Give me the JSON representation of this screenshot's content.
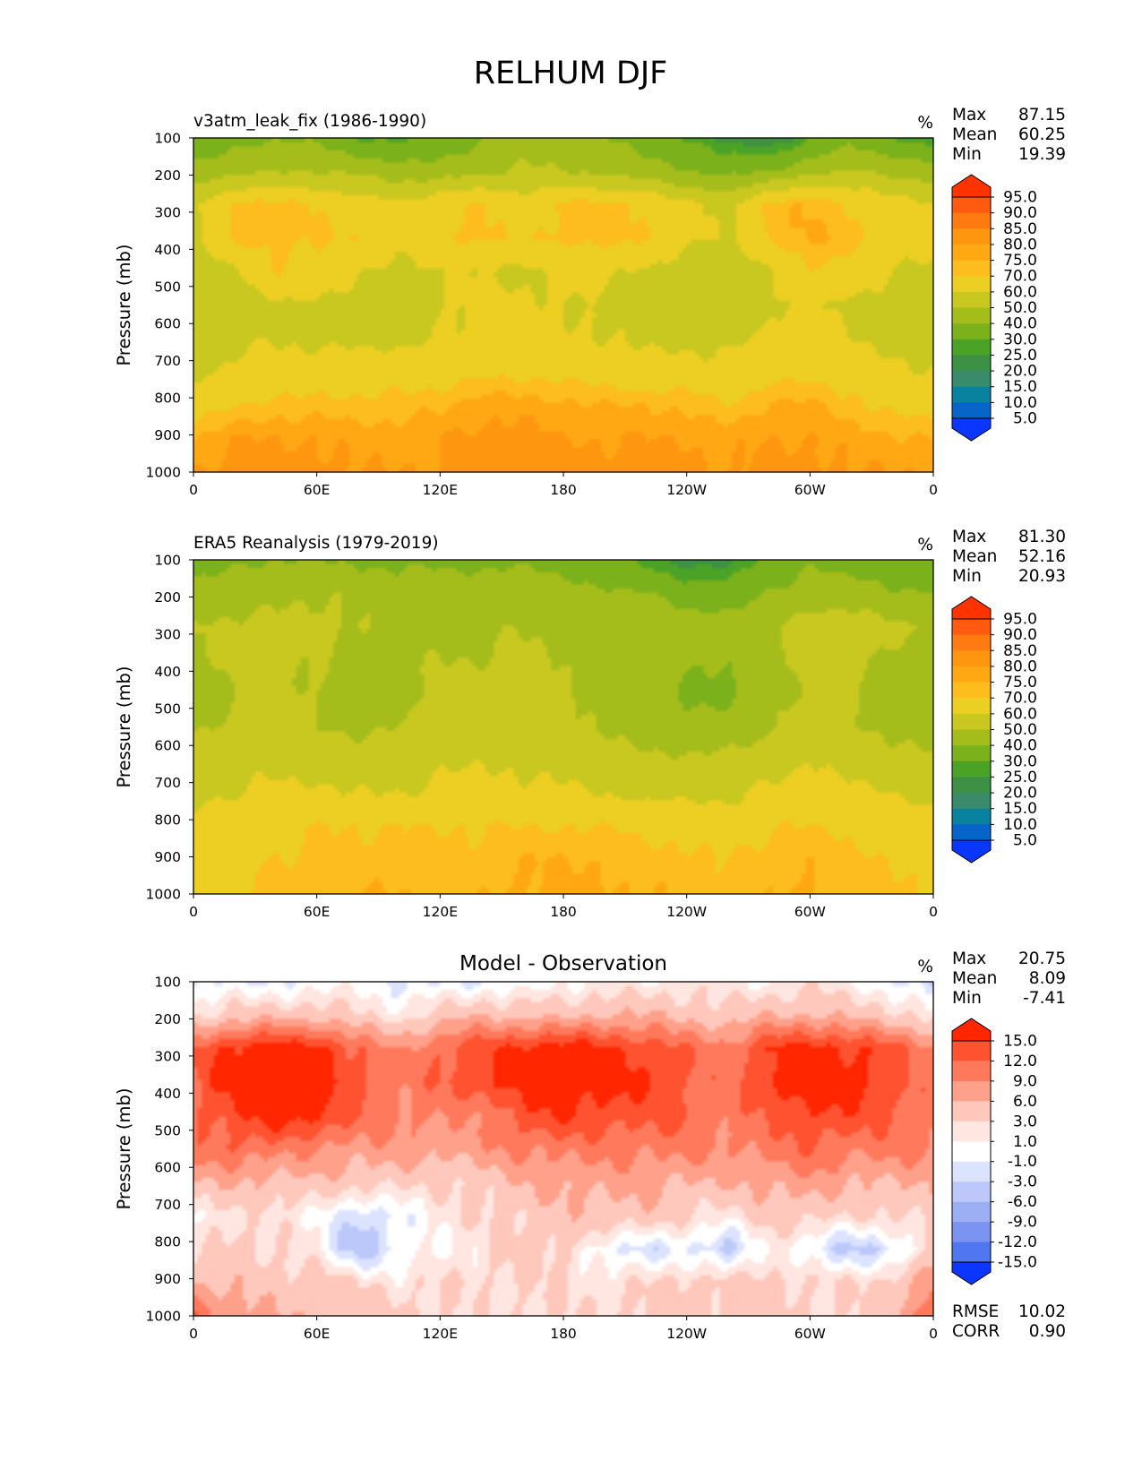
{
  "figure": {
    "title": "RELHUM DJF"
  },
  "chart_data": [
    {
      "type": "heatmap",
      "title": "v3atm_leak_fix (1986-1990)",
      "units": "%",
      "ylabel": "Pressure (mb)",
      "yticks": [
        "100",
        "200",
        "300",
        "400",
        "500",
        "600",
        "700",
        "800",
        "900",
        "1000"
      ],
      "xticks": [
        "0",
        "60E",
        "120E",
        "180",
        "120W",
        "60W",
        "0"
      ],
      "ylim": [
        1000,
        100
      ],
      "xlim": [
        0,
        360
      ],
      "stats": {
        "max_label": "Max",
        "max": "87.15",
        "mean_label": "Mean",
        "mean": "60.25",
        "min_label": "Min",
        "min": "19.39"
      },
      "levels": [
        "95.0",
        "90.0",
        "85.0",
        "80.0",
        "75.0",
        "70.0",
        "60.0",
        "50.0",
        "40.0",
        "30.0",
        "25.0",
        "20.0",
        "15.0",
        "10.0",
        "5.0"
      ],
      "colors": [
        "#ff3300",
        "#ff5a10",
        "#ff7a10",
        "#ff9610",
        "#ffa814",
        "#fdbd1e",
        "#eccf22",
        "#c9c820",
        "#a5bd1a",
        "#7bb11a",
        "#4aa327",
        "#3e9045",
        "#3a8a6c",
        "#08829e",
        "#0764c8",
        "#0a37ff"
      ],
      "field": [
        [
          30,
          35,
          40,
          38,
          30,
          28,
          30,
          40,
          45,
          42,
          40,
          35,
          30,
          22,
          20,
          28,
          38,
          30,
          25
        ],
        [
          45,
          48,
          50,
          50,
          48,
          45,
          45,
          48,
          52,
          50,
          48,
          44,
          40,
          38,
          40,
          48,
          50,
          48,
          45
        ],
        [
          58,
          72,
          72,
          70,
          65,
          62,
          68,
          70,
          65,
          72,
          72,
          70,
          62,
          58,
          72,
          75,
          70,
          65,
          62
        ],
        [
          58,
          72,
          72,
          70,
          70,
          62,
          70,
          72,
          68,
          72,
          72,
          70,
          62,
          58,
          72,
          76,
          72,
          65,
          62
        ],
        [
          55,
          58,
          70,
          68,
          60,
          58,
          60,
          60,
          58,
          62,
          62,
          58,
          56,
          52,
          58,
          70,
          66,
          60,
          58
        ],
        [
          55,
          56,
          58,
          58,
          58,
          56,
          60,
          62,
          62,
          60,
          58,
          56,
          56,
          56,
          58,
          62,
          58,
          56,
          56
        ],
        [
          55,
          58,
          60,
          58,
          58,
          58,
          60,
          62,
          62,
          62,
          60,
          58,
          58,
          58,
          62,
          65,
          60,
          58,
          56
        ],
        [
          58,
          62,
          63,
          65,
          65,
          66,
          66,
          68,
          68,
          68,
          66,
          64,
          64,
          62,
          66,
          68,
          65,
          62,
          60
        ],
        [
          65,
          70,
          72,
          72,
          72,
          72,
          74,
          78,
          78,
          76,
          75,
          75,
          74,
          70,
          76,
          76,
          72,
          68,
          66
        ],
        [
          75,
          80,
          80,
          80,
          78,
          78,
          80,
          82,
          82,
          80,
          80,
          80,
          80,
          78,
          80,
          80,
          78,
          76,
          75
        ],
        [
          80,
          82,
          82,
          82,
          80,
          80,
          80,
          82,
          82,
          82,
          82,
          82,
          82,
          80,
          82,
          82,
          80,
          80,
          80
        ]
      ]
    },
    {
      "type": "heatmap",
      "title": "ERA5 Reanalysis (1979-2019)",
      "units": "%",
      "ylabel": "Pressure (mb)",
      "yticks": [
        "100",
        "200",
        "300",
        "400",
        "500",
        "600",
        "700",
        "800",
        "900",
        "1000"
      ],
      "xticks": [
        "0",
        "60E",
        "120E",
        "180",
        "120W",
        "60W",
        "0"
      ],
      "ylim": [
        1000,
        100
      ],
      "xlim": [
        0,
        360
      ],
      "stats": {
        "max_label": "Max",
        "max": "81.30",
        "mean_label": "Mean",
        "mean": "52.16",
        "min_label": "Min",
        "min": "20.93"
      },
      "levels": [
        "95.0",
        "90.0",
        "85.0",
        "80.0",
        "75.0",
        "70.0",
        "60.0",
        "50.0",
        "40.0",
        "30.0",
        "25.0",
        "20.0",
        "15.0",
        "10.0",
        "5.0"
      ],
      "colors": [
        "#ff3300",
        "#ff5a10",
        "#ff7a10",
        "#ff9610",
        "#ffa814",
        "#fdbd1e",
        "#eccf22",
        "#c9c820",
        "#a5bd1a",
        "#7bb11a",
        "#4aa327",
        "#3e9045",
        "#3a8a6c",
        "#08829e",
        "#0764c8",
        "#0a37ff"
      ],
      "field": [
        [
          35,
          38,
          40,
          40,
          38,
          38,
          38,
          38,
          38,
          35,
          32,
          28,
          22,
          22,
          35,
          38,
          35,
          32,
          32
        ],
        [
          45,
          45,
          48,
          50,
          48,
          45,
          45,
          45,
          48,
          45,
          42,
          40,
          35,
          35,
          40,
          45,
          45,
          42,
          40
        ],
        [
          50,
          52,
          52,
          52,
          50,
          48,
          48,
          48,
          50,
          48,
          48,
          48,
          45,
          45,
          48,
          55,
          55,
          52,
          50
        ],
        [
          48,
          52,
          52,
          50,
          48,
          48,
          50,
          50,
          52,
          50,
          48,
          46,
          42,
          40,
          46,
          55,
          53,
          48,
          42
        ],
        [
          42,
          50,
          52,
          50,
          48,
          46,
          52,
          55,
          52,
          50,
          48,
          44,
          38,
          38,
          46,
          52,
          50,
          45,
          40
        ],
        [
          48,
          52,
          56,
          50,
          48,
          50,
          56,
          58,
          55,
          52,
          48,
          46,
          42,
          45,
          48,
          56,
          52,
          46,
          45
        ],
        [
          52,
          56,
          58,
          56,
          55,
          55,
          58,
          60,
          58,
          56,
          55,
          52,
          52,
          52,
          56,
          60,
          56,
          54,
          52
        ],
        [
          58,
          60,
          62,
          62,
          60,
          60,
          62,
          64,
          62,
          62,
          60,
          58,
          58,
          58,
          62,
          64,
          62,
          60,
          58
        ],
        [
          62,
          66,
          68,
          70,
          70,
          70,
          70,
          70,
          70,
          70,
          70,
          68,
          68,
          66,
          70,
          70,
          68,
          66,
          64
        ],
        [
          65,
          68,
          70,
          72,
          72,
          72,
          72,
          72,
          75,
          75,
          75,
          72,
          72,
          70,
          72,
          75,
          72,
          70,
          68
        ],
        [
          68,
          70,
          72,
          74,
          75,
          75,
          74,
          74,
          76,
          76,
          76,
          75,
          74,
          72,
          74,
          76,
          74,
          72,
          70
        ]
      ]
    },
    {
      "type": "heatmap",
      "title": "Model - Observation",
      "units": "%",
      "ylabel": "Pressure (mb)",
      "yticks": [
        "100",
        "200",
        "300",
        "400",
        "500",
        "600",
        "700",
        "800",
        "900",
        "1000"
      ],
      "xticks": [
        "0",
        "60E",
        "120E",
        "180",
        "120W",
        "60W",
        "0"
      ],
      "ylim": [
        1000,
        100
      ],
      "xlim": [
        0,
        360
      ],
      "stats": {
        "max_label": "Max",
        "max": "20.75",
        "mean_label": "Mean",
        "mean": "8.09",
        "min_label": "Min",
        "min": "-7.41"
      },
      "footer_stats": {
        "rmse_label": "RMSE",
        "rmse": "10.02",
        "corr_label": "CORR",
        "corr": "0.90"
      },
      "levels": [
        "15.0",
        "12.0",
        "9.0",
        "6.0",
        "3.0",
        "1.0",
        "-1.0",
        "-3.0",
        "-6.0",
        "-9.0",
        "-12.0",
        "-15.0"
      ],
      "colors": [
        "#ff2600",
        "#ff5230",
        "#ff7a5c",
        "#ffa08a",
        "#ffc8bc",
        "#ffe6e0",
        "#ffffff",
        "#dce3ff",
        "#bcc8fa",
        "#9caff5",
        "#7b94f2",
        "#5076f0",
        "#0b36ff"
      ],
      "field": [
        [
          -2,
          -1,
          -1,
          -1,
          1,
          -2,
          -1,
          -1,
          -1,
          1,
          1,
          1,
          2,
          1,
          1,
          2,
          1,
          -1,
          -3
        ],
        [
          3,
          4,
          5,
          5,
          3,
          2,
          4,
          6,
          5,
          5,
          6,
          6,
          5,
          4,
          6,
          6,
          5,
          4,
          2
        ],
        [
          12,
          16,
          17,
          16,
          12,
          8,
          12,
          14,
          16,
          17,
          16,
          14,
          12,
          10,
          15,
          17,
          15,
          13,
          10
        ],
        [
          12,
          17,
          18,
          17,
          13,
          9,
          12,
          15,
          16,
          17,
          17,
          15,
          12,
          10,
          16,
          18,
          17,
          14,
          10
        ],
        [
          12,
          14,
          17,
          16,
          12,
          10,
          9,
          9,
          14,
          15,
          14,
          13,
          13,
          10,
          12,
          15,
          14,
          12,
          10
        ],
        [
          10,
          12,
          10,
          9,
          8,
          8,
          7,
          8,
          10,
          10,
          10,
          10,
          10,
          9,
          10,
          12,
          10,
          10,
          10
        ],
        [
          6,
          6,
          5,
          5,
          4,
          4,
          3,
          4,
          6,
          7,
          7,
          7,
          6,
          6,
          7,
          8,
          6,
          6,
          6
        ],
        [
          1,
          3,
          2,
          1,
          -3,
          -1,
          2,
          3,
          4,
          5,
          5,
          5,
          3,
          2,
          4,
          4,
          3,
          3,
          4
        ],
        [
          2,
          4,
          3,
          1,
          -5,
          -1,
          1,
          2,
          4,
          4,
          -1,
          -2,
          -1,
          -4,
          2,
          -1,
          -4,
          -2,
          3
        ],
        [
          6,
          5,
          4,
          5,
          3,
          2,
          3,
          3,
          3,
          3,
          2,
          3,
          4,
          4,
          4,
          3,
          3,
          4,
          8
        ],
        [
          12,
          8,
          6,
          5,
          5,
          4,
          3,
          2,
          3,
          3,
          3,
          4,
          4,
          4,
          4,
          3,
          3,
          4,
          14
        ]
      ]
    }
  ]
}
